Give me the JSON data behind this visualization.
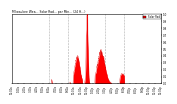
{
  "title": "Milwaukee Wea... Solar Rad... per Min... (24 H...)",
  "legend_label": "Solar Rad",
  "background_color": "#ffffff",
  "fill_color": "#ff0000",
  "line_color": "#dd0000",
  "grid_color": "#888888",
  "ylim": [
    0,
    1.0
  ],
  "xlim": [
    0,
    1440
  ],
  "num_points": 1440,
  "ytick_values": [
    0.0,
    0.1,
    0.2,
    0.3,
    0.4,
    0.5,
    0.6,
    0.7,
    0.8,
    0.9,
    1.0
  ],
  "dashed_positions": [
    360,
    540,
    720,
    900,
    1080
  ],
  "xtick_step_minutes": 60
}
